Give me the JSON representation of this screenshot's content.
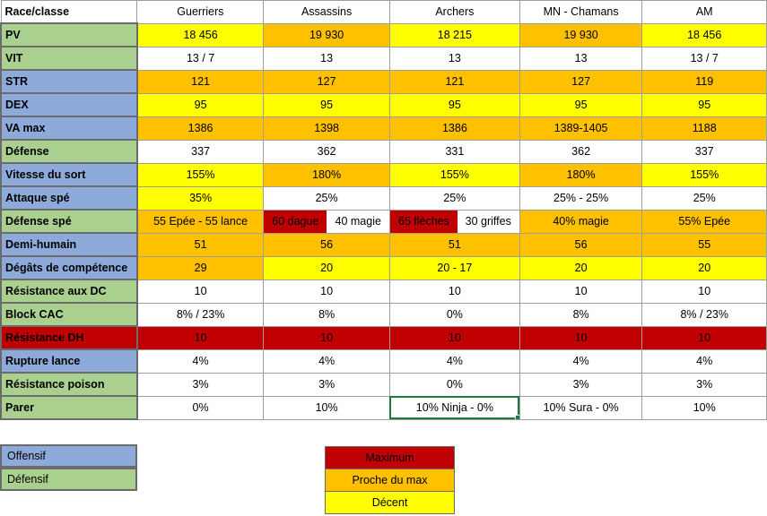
{
  "colors": {
    "offensive": "#8eaadb",
    "defensive": "#a9d08e",
    "max": "#c00000",
    "near_max": "#ffc000",
    "decent": "#ffff00",
    "plain": "#ffffff"
  },
  "table": {
    "corner_label": "Race/classe",
    "columns": [
      "Guerriers",
      "Assassins",
      "Archers",
      "MN - Chamans",
      "AM"
    ],
    "rows": [
      {
        "label": "PV",
        "kind": "defensive",
        "cells": [
          {
            "v": "18 456",
            "c": "decent"
          },
          {
            "v": "19 930",
            "c": "near_max"
          },
          {
            "v": "18 215",
            "c": "decent"
          },
          {
            "v": "19 930",
            "c": "near_max"
          },
          {
            "v": "18 456",
            "c": "decent"
          }
        ]
      },
      {
        "label": "VIT",
        "kind": "defensive",
        "cells": [
          {
            "v": "13 / 7",
            "c": "plain"
          },
          {
            "v": "13",
            "c": "plain"
          },
          {
            "v": "13",
            "c": "plain"
          },
          {
            "v": "13",
            "c": "plain"
          },
          {
            "v": "13 / 7",
            "c": "plain"
          }
        ]
      },
      {
        "label": "STR",
        "kind": "offensive",
        "cells": [
          {
            "v": "121",
            "c": "near_max"
          },
          {
            "v": "127",
            "c": "near_max"
          },
          {
            "v": "121",
            "c": "near_max"
          },
          {
            "v": "127",
            "c": "near_max"
          },
          {
            "v": "119",
            "c": "near_max"
          }
        ]
      },
      {
        "label": "DEX",
        "kind": "offensive",
        "cells": [
          {
            "v": "95",
            "c": "decent"
          },
          {
            "v": "95",
            "c": "decent"
          },
          {
            "v": "95",
            "c": "decent"
          },
          {
            "v": "95",
            "c": "decent"
          },
          {
            "v": "95",
            "c": "decent"
          }
        ]
      },
      {
        "label": "VA max",
        "kind": "offensive",
        "cells": [
          {
            "v": "1386",
            "c": "near_max"
          },
          {
            "v": "1398",
            "c": "near_max"
          },
          {
            "v": "1386",
            "c": "near_max"
          },
          {
            "v": "1389-1405",
            "c": "near_max"
          },
          {
            "v": "1188",
            "c": "near_max"
          }
        ]
      },
      {
        "label": "Défense",
        "kind": "defensive",
        "cells": [
          {
            "v": "337",
            "c": "plain"
          },
          {
            "v": "362",
            "c": "plain"
          },
          {
            "v": "331",
            "c": "plain"
          },
          {
            "v": "362",
            "c": "plain"
          },
          {
            "v": "337",
            "c": "plain"
          }
        ]
      },
      {
        "label": "Vitesse du sort",
        "kind": "offensive",
        "cells": [
          {
            "v": "155%",
            "c": "decent"
          },
          {
            "v": "180%",
            "c": "near_max"
          },
          {
            "v": "155%",
            "c": "decent"
          },
          {
            "v": "180%",
            "c": "near_max"
          },
          {
            "v": "155%",
            "c": "decent"
          }
        ]
      },
      {
        "label": "Attaque spé",
        "kind": "offensive",
        "cells": [
          {
            "v": "35%",
            "c": "decent"
          },
          {
            "v": "25%",
            "c": "plain"
          },
          {
            "v": "25%",
            "c": "plain"
          },
          {
            "v": "25% - 25%",
            "c": "plain"
          },
          {
            "v": "25%",
            "c": "plain"
          }
        ]
      },
      {
        "label": "Défense spé",
        "kind": "defensive",
        "cells": [
          {
            "v": "55 Epée - 55 lance",
            "c": "near_max"
          },
          {
            "split": [
              {
                "v": "60 dague",
                "c": "max"
              },
              {
                "v": "40 magie",
                "c": "plain"
              }
            ]
          },
          {
            "split": [
              {
                "v": "65 flèches",
                "c": "max"
              },
              {
                "v": "30 griffes",
                "c": "plain"
              }
            ]
          },
          {
            "v": "40% magie",
            "c": "near_max"
          },
          {
            "v": "55% Epée",
            "c": "near_max"
          }
        ]
      },
      {
        "label": "Demi-humain",
        "kind": "offensive",
        "cells": [
          {
            "v": "51",
            "c": "near_max"
          },
          {
            "v": "56",
            "c": "near_max"
          },
          {
            "v": "51",
            "c": "near_max"
          },
          {
            "v": "56",
            "c": "near_max"
          },
          {
            "v": "55",
            "c": "near_max"
          }
        ]
      },
      {
        "label": "Dégâts de compétence",
        "kind": "offensive",
        "cells": [
          {
            "v": "29",
            "c": "near_max"
          },
          {
            "v": "20",
            "c": "decent"
          },
          {
            "v": "20 - 17",
            "c": "decent"
          },
          {
            "v": "20",
            "c": "decent"
          },
          {
            "v": "20",
            "c": "decent"
          }
        ]
      },
      {
        "label": "Résistance aux DC",
        "kind": "defensive",
        "cells": [
          {
            "v": "10",
            "c": "plain"
          },
          {
            "v": "10",
            "c": "plain"
          },
          {
            "v": "10",
            "c": "plain"
          },
          {
            "v": "10",
            "c": "plain"
          },
          {
            "v": "10",
            "c": "plain"
          }
        ]
      },
      {
        "label": "Block CAC",
        "kind": "defensive",
        "cells": [
          {
            "v": "8% / 23%",
            "c": "plain"
          },
          {
            "v": "8%",
            "c": "plain"
          },
          {
            "v": "0%",
            "c": "plain"
          },
          {
            "v": "8%",
            "c": "plain"
          },
          {
            "v": "8% / 23%",
            "c": "plain"
          }
        ]
      },
      {
        "label": "Résistance DH",
        "kind": "max",
        "cells": [
          {
            "v": "10",
            "c": "max"
          },
          {
            "v": "10",
            "c": "max"
          },
          {
            "v": "10",
            "c": "max"
          },
          {
            "v": "10",
            "c": "max"
          },
          {
            "v": "10",
            "c": "max"
          }
        ]
      },
      {
        "label": "Rupture lance",
        "kind": "offensive",
        "cells": [
          {
            "v": "4%",
            "c": "plain"
          },
          {
            "v": "4%",
            "c": "plain"
          },
          {
            "v": "4%",
            "c": "plain"
          },
          {
            "v": "4%",
            "c": "plain"
          },
          {
            "v": "4%",
            "c": "plain"
          }
        ]
      },
      {
        "label": "Résistance poison",
        "kind": "defensive",
        "cells": [
          {
            "v": "3%",
            "c": "plain"
          },
          {
            "v": "3%",
            "c": "plain"
          },
          {
            "v": "0%",
            "c": "plain"
          },
          {
            "v": "3%",
            "c": "plain"
          },
          {
            "v": "3%",
            "c": "plain"
          }
        ]
      },
      {
        "label": "Parer",
        "kind": "defensive",
        "cells": [
          {
            "v": "0%",
            "c": "plain"
          },
          {
            "v": "10%",
            "c": "plain"
          },
          {
            "v": "10% Ninja - 0%",
            "c": "plain",
            "selected": true
          },
          {
            "v": "10% Sura - 0%",
            "c": "plain"
          },
          {
            "v": "10%",
            "c": "plain"
          }
        ]
      }
    ]
  },
  "legend_kind": {
    "offensive_label": "Offensif",
    "defensive_label": "Défensif"
  },
  "legend_level": {
    "max_label": "Maximum",
    "near_max_label": "Proche du max",
    "decent_label": "Décent"
  }
}
